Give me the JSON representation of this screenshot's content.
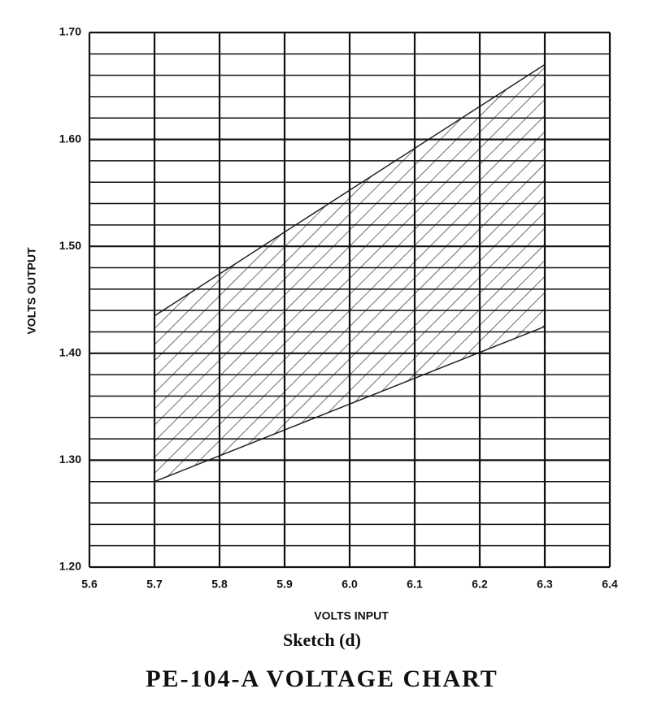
{
  "chart_data": {
    "type": "band",
    "title": "PE-104-A VOLTAGE CHART",
    "subtitle": "Sketch (d)",
    "xlabel": "VOLTS INPUT",
    "ylabel": "VOLTS OUTPUT",
    "x": [
      5.7,
      6.3
    ],
    "upper": [
      1.435,
      1.67
    ],
    "lower": [
      1.28,
      1.425
    ],
    "color": "#222222",
    "xlim": [
      5.6,
      6.4
    ],
    "ylim": [
      1.2,
      1.7
    ],
    "xticks": [
      5.6,
      5.7,
      5.8,
      5.9,
      {
        "value": 6,
        "label": "6.0"
      },
      6.1,
      6.2,
      6.3,
      6.4
    ],
    "yticks": [
      {
        "value": 1.2,
        "label": "1.20"
      },
      {
        "value": 1.3,
        "label": "1.30"
      },
      {
        "value": 1.4,
        "label": "1.40"
      },
      {
        "value": 1.5,
        "label": "1.50"
      },
      {
        "value": 1.6,
        "label": "1.60"
      },
      {
        "value": 1.7,
        "label": "1.70"
      }
    ],
    "minor_yticks": [
      1.22,
      1.24,
      1.26,
      1.28,
      1.32,
      1.34,
      1.36,
      1.38,
      1.42,
      1.44,
      1.46,
      1.48,
      1.52,
      1.54,
      1.56,
      1.58,
      1.62,
      1.64,
      1.66,
      1.68
    ],
    "grid": true
  }
}
